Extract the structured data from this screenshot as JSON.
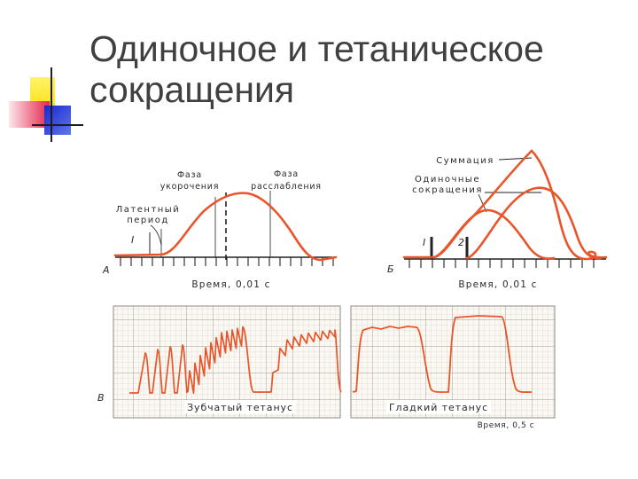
{
  "slide": {
    "title": [
      "Одиночное и тетаническое",
      "сокращения"
    ]
  },
  "figure": {
    "panel_a": {
      "letter": "А",
      "shortening_phase": [
        "Фаза",
        "укорочения"
      ],
      "relaxation_phase": [
        "Фаза",
        "расслабления"
      ],
      "latent_period": [
        "Латентный",
        "период"
      ],
      "stimulus": "I",
      "time_axis": "Время, 0,01 с"
    },
    "panel_b": {
      "letter": "Б",
      "summation": "Суммация",
      "single_contractions": [
        "Одиночные",
        "сокращения"
      ],
      "stimulus_1": "I",
      "stimulus_2": "2",
      "time_axis": "Время, 0,01 с"
    },
    "panel_c": {
      "letter": "В",
      "dentate_tetanus": "Зубчатый тетанус",
      "smooth_tetanus": "Гладкий тетанус",
      "time_axis": "Время, 0,5 с"
    }
  },
  "colors": {
    "trace": "#e9552b",
    "ink": "#222222",
    "grid_paper": "#fbf8f2"
  }
}
